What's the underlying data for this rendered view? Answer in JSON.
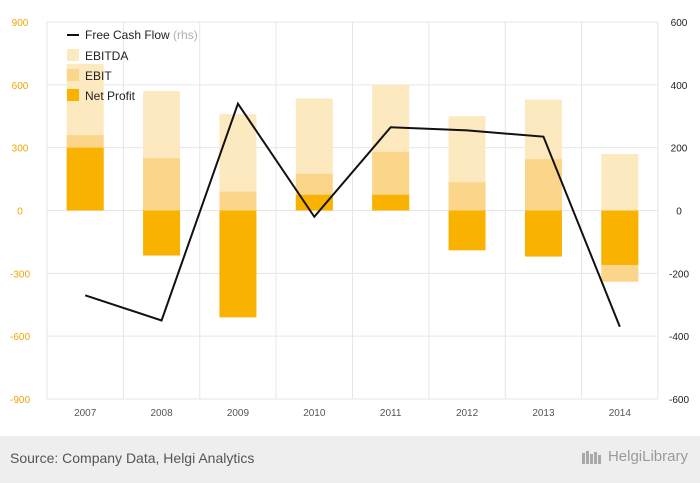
{
  "chart_data": {
    "type": "bar",
    "categories": [
      "2007",
      "2008",
      "2009",
      "2010",
      "2011",
      "2012",
      "2013",
      "2014"
    ],
    "series": [
      {
        "name": "EBITDA",
        "axis": "left",
        "values": [
          700,
          570,
          460,
          535,
          600,
          450,
          530,
          270
        ],
        "color": "#fde9c0"
      },
      {
        "name": "EBIT",
        "axis": "left",
        "values": [
          360,
          250,
          90,
          175,
          280,
          135,
          245,
          -340
        ],
        "color": "#fbd58a"
      },
      {
        "name": "Net Profit",
        "axis": "left",
        "values": [
          300,
          -215,
          -510,
          75,
          75,
          -190,
          -220,
          -260
        ],
        "color": "#f9b200"
      },
      {
        "name": "Free Cash Flow",
        "name_suffix": "(rhs)",
        "axis": "right",
        "type": "line",
        "values": [
          -270,
          -350,
          340,
          -20,
          265,
          255,
          235,
          -370
        ],
        "color": "#111111"
      }
    ],
    "ylim_left": [
      -900,
      900
    ],
    "yticks_left": [
      "900",
      "600",
      "300",
      "0",
      "-300",
      "-600",
      "-900"
    ],
    "ylim_right": [
      -600,
      600
    ],
    "yticks_right": [
      "600",
      "400",
      "200",
      "0",
      "-200",
      "-400",
      "-600"
    ],
    "grid": true,
    "legend_position": "top-left"
  },
  "footer": {
    "source": "Source: Company Data, Helgi Analytics",
    "logo": "HelgiLibrary"
  },
  "colors": {
    "left_axis_text": "#f0a500",
    "right_axis_text": "#222222",
    "grid": "#e6e6e6",
    "x_axis_text": "#555555"
  }
}
